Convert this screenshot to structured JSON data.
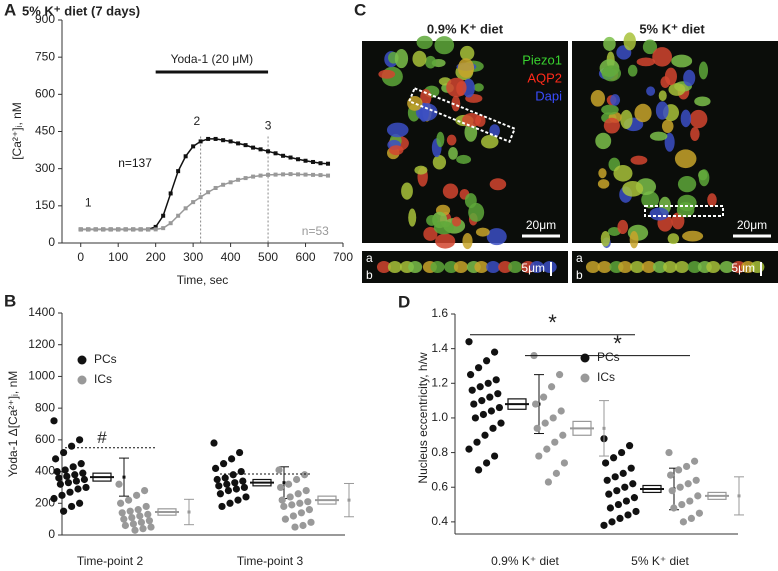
{
  "chart_data": [
    {
      "type": "line",
      "panel": "A",
      "title": "5% K⁺ diet (7 days)",
      "x_label": "Time, sec",
      "y_label": "[Ca²⁺]ᵢ, nM",
      "x": [
        0,
        20,
        40,
        60,
        80,
        100,
        120,
        140,
        160,
        180,
        200,
        220,
        240,
        260,
        280,
        300,
        320,
        340,
        360,
        380,
        400,
        420,
        440,
        460,
        480,
        500,
        520,
        540,
        560,
        580,
        600,
        620,
        640,
        660
      ],
      "xlim": [
        -50,
        700
      ],
      "xticks": [
        0,
        100,
        200,
        300,
        400,
        500,
        600,
        700
      ],
      "ylim": [
        0,
        900
      ],
      "yticks": [
        0,
        150,
        300,
        450,
        600,
        750,
        900
      ],
      "series": [
        {
          "name": "n=137",
          "color": "#111111",
          "values": [
            55,
            55,
            55,
            55,
            55,
            55,
            55,
            55,
            55,
            55,
            65,
            110,
            200,
            290,
            350,
            390,
            410,
            420,
            420,
            415,
            410,
            402,
            395,
            385,
            378,
            370,
            362,
            352,
            345,
            338,
            332,
            327,
            322,
            320
          ]
        },
        {
          "name": "n=53",
          "color": "#999999",
          "values": [
            55,
            55,
            55,
            55,
            55,
            55,
            55,
            55,
            55,
            55,
            55,
            60,
            80,
            110,
            140,
            165,
            185,
            205,
            222,
            235,
            245,
            255,
            262,
            268,
            272,
            275,
            276,
            277,
            278,
            277,
            276,
            275,
            274,
            272
          ]
        }
      ],
      "annotations": [
        "Yoda-1 (20 μM)",
        "1",
        "2",
        "3"
      ]
    },
    {
      "type": "strip",
      "panel": "B",
      "y_label": "Yoda-1 Δ[Ca²⁺]ᵢ, nM",
      "categories": [
        "Time-point 2",
        "Time-point 3"
      ],
      "ylim": [
        0,
        1400
      ],
      "yticks": [
        0,
        200,
        400,
        600,
        800,
        1000,
        1200,
        1400
      ],
      "series": [
        {
          "name": "PCs",
          "color": "#111111",
          "values": [
            [
              720,
              600,
              560,
              520,
              480,
              450,
              430,
              410,
              400,
              390,
              380,
              370,
              360,
              350,
              340,
              330,
              320,
              300,
              290,
              270,
              250,
              230,
              200,
              180,
              150
            ],
            [
              580,
              520,
              480,
              450,
              420,
              400,
              380,
              360,
              350,
              340,
              330,
              320,
              310,
              300,
              290,
              280,
              260,
              240,
              220,
              200,
              180
            ]
          ],
          "mean": [
            365,
            330
          ],
          "se": [
            25,
            20
          ],
          "sd": [
            120,
            100
          ]
        },
        {
          "name": "ICs",
          "color": "#999999",
          "values": [
            [
              320,
              280,
              250,
              220,
              200,
              180,
              160,
              150,
              140,
              130,
              120,
              110,
              100,
              90,
              80,
              70,
              60,
              50,
              40,
              30
            ],
            [
              410,
              380,
              350,
              320,
              300,
              280,
              260,
              240,
              220,
              210,
              200,
              190,
              180,
              160,
              140,
              120,
              100,
              80,
              60,
              50
            ]
          ],
          "mean": [
            145,
            220
          ],
          "se": [
            20,
            25
          ],
          "sd": [
            80,
            105
          ]
        }
      ],
      "annotations": [
        "#"
      ]
    },
    {
      "type": "strip",
      "panel": "D",
      "y_label": "Nucleus eccentricity, h/w",
      "categories": [
        "0.9% K⁺ diet",
        "5% K⁺ diet"
      ],
      "ylim": [
        0.33,
        1.6
      ],
      "yticks": [
        0.4,
        0.6,
        0.8,
        {
          "value": 1,
          "label": "1.0"
        },
        1.2,
        1.4,
        1.6
      ],
      "series": [
        {
          "name": "PCs",
          "color": "#111111",
          "values": [
            [
              1.44,
              1.38,
              1.33,
              1.29,
              1.25,
              1.22,
              1.2,
              1.18,
              1.16,
              1.14,
              1.12,
              1.1,
              1.08,
              1.06,
              1.04,
              1.02,
              1.0,
              0.97,
              0.94,
              0.9,
              0.86,
              0.82,
              0.78,
              0.74,
              0.7
            ],
            [
              0.88,
              0.84,
              0.8,
              0.77,
              0.74,
              0.71,
              0.68,
              0.66,
              0.64,
              0.62,
              0.6,
              0.58,
              0.56,
              0.54,
              0.52,
              0.5,
              0.48,
              0.46,
              0.44,
              0.42,
              0.4,
              0.38
            ]
          ],
          "mean": [
            1.08,
            0.59
          ],
          "se": [
            0.03,
            0.02
          ],
          "sd": [
            0.17,
            0.12
          ]
        },
        {
          "name": "ICs",
          "color": "#999999",
          "values": [
            [
              1.36,
              1.25,
              1.18,
              1.12,
              1.08,
              1.04,
              1.0,
              0.97,
              0.94,
              0.9,
              0.86,
              0.82,
              0.78,
              0.74,
              0.68,
              0.63
            ],
            [
              0.8,
              0.75,
              0.72,
              0.7,
              0.67,
              0.64,
              0.62,
              0.6,
              0.58,
              0.55,
              0.52,
              0.5,
              0.48,
              0.45,
              0.42,
              0.4
            ]
          ],
          "mean": [
            0.94,
            0.55
          ],
          "se": [
            0.04,
            0.02
          ],
          "sd": [
            0.16,
            0.11
          ]
        }
      ],
      "annotations": [
        "*",
        "*"
      ]
    }
  ],
  "image_panel": {
    "panel": "C",
    "titles": [
      "0.9% K⁺ diet",
      "5% K⁺ diet"
    ],
    "channels": [
      "Piezo1",
      "AQP2",
      "Dapi"
    ],
    "scale_bars": [
      "20μm",
      "20μm"
    ],
    "strip_scale": [
      "5μm",
      "5μm"
    ],
    "strip_labels": [
      "a",
      "b",
      "a",
      "b"
    ]
  }
}
